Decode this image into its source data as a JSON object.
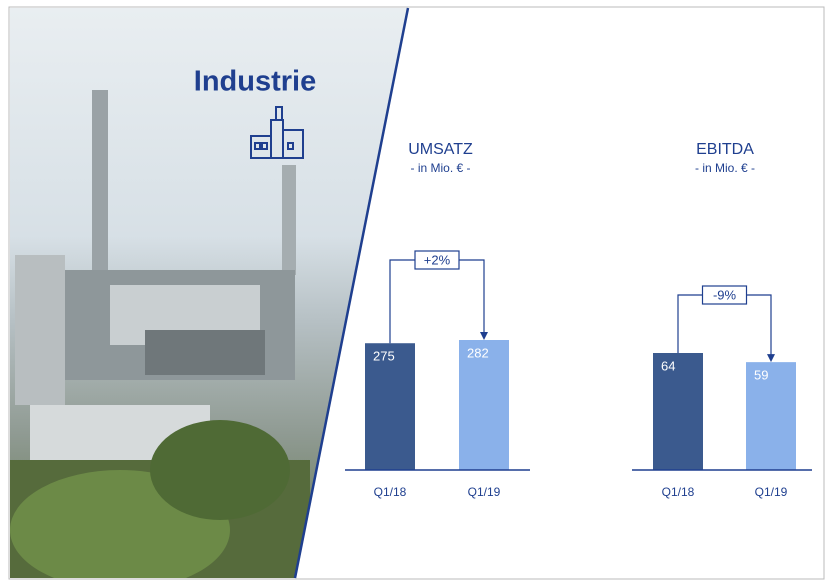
{
  "title": "Industrie",
  "chart_data": [
    {
      "type": "bar",
      "title": "UMSATZ",
      "subtitle": "- in Mio. € -",
      "categories": [
        "Q1/18",
        "Q1/19"
      ],
      "values": [
        275,
        282
      ],
      "colors": [
        "#3b5a8e",
        "#8ab1ea"
      ],
      "annotation": "+2%"
    },
    {
      "type": "bar",
      "title": "EBITDA",
      "subtitle": "- in Mio. € -",
      "categories": [
        "Q1/18",
        "Q1/19"
      ],
      "values": [
        64,
        59
      ],
      "colors": [
        "#3b5a8e",
        "#8ab1ea"
      ],
      "annotation": "-9%"
    }
  ]
}
